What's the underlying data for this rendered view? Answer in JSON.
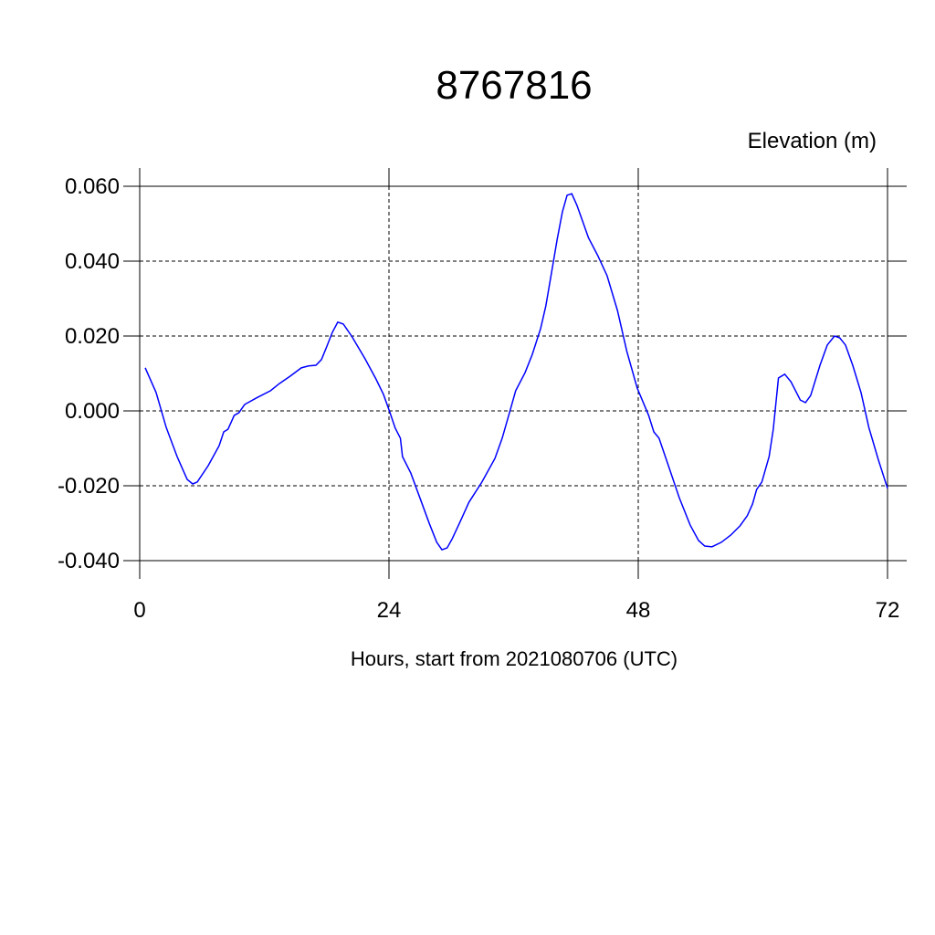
{
  "chart_data": {
    "type": "line",
    "title": "8767816",
    "subtitle": "Elevation (m)",
    "x_label": "Hours, start from 2021080706 (UTC)",
    "xlim": [
      0,
      72
    ],
    "xticks": [
      0,
      24,
      48,
      72
    ],
    "ylim": [
      -0.04,
      0.06
    ],
    "yticks": [
      {
        "value": -0.04,
        "label": "-0.040"
      },
      {
        "value": -0.02,
        "label": "-0.020"
      },
      {
        "value": 0,
        "label": "0.000"
      },
      {
        "value": 0.02,
        "label": "0.020"
      },
      {
        "value": 0.04,
        "label": "0.040"
      },
      {
        "value": 0.06,
        "label": "0.060"
      }
    ],
    "grid": true,
    "color": "#0000ff",
    "x": [
      0.53,
      1.58,
      2.55,
      3.6,
      4.57,
      5.1,
      5.54,
      6.6,
      7.65,
      8.09,
      8.5,
      9.1,
      9.55,
      10.1,
      11.2,
      12.6,
      13.45,
      14.5,
      15.56,
      16.26,
      16.97,
      17.5,
      18.0,
      18.55,
      19.07,
      19.6,
      20.4,
      21.7,
      22.75,
      23.47,
      24.1,
      24.6,
      25.1,
      25.3,
      26.1,
      27.0,
      27.9,
      28.6,
      29.1,
      29.6,
      30.1,
      30.9,
      31.7,
      32.95,
      34.2,
      34.9,
      35.6,
      36.2,
      37.1,
      37.8,
      38.6,
      39.1,
      39.6,
      40.2,
      40.7,
      41.15,
      41.6,
      42.1,
      43.2,
      44.1,
      45.0,
      46.0,
      46.9,
      47.9,
      49.0,
      49.5,
      50.0,
      50.9,
      51.95,
      53.0,
      53.8,
      54.4,
      55.1,
      56.0,
      56.9,
      57.8,
      58.5,
      59.0,
      59.4,
      59.9,
      60.6,
      61.0,
      61.5,
      62.1,
      62.7,
      63.6,
      64.1,
      64.6,
      65.5,
      66.2,
      66.9,
      67.4,
      67.95,
      68.65,
      69.45,
      70.2,
      71.1,
      72.0
    ],
    "values": [
      0.0115,
      0.0049,
      -0.0044,
      -0.0122,
      -0.0183,
      -0.0195,
      -0.019,
      -0.0146,
      -0.0093,
      -0.0056,
      -0.0049,
      -0.0012,
      -0.0005,
      0.0017,
      0.0034,
      0.0054,
      0.0073,
      0.0093,
      0.0115,
      0.012,
      0.0122,
      0.0137,
      0.0171,
      0.021,
      0.0237,
      0.0232,
      0.02,
      0.0139,
      0.0085,
      0.0044,
      -0.0005,
      -0.0046,
      -0.0073,
      -0.0122,
      -0.0166,
      -0.0234,
      -0.0302,
      -0.0351,
      -0.0371,
      -0.0366,
      -0.0341,
      -0.0293,
      -0.0244,
      -0.019,
      -0.0127,
      -0.0073,
      -0.0005,
      0.0054,
      0.0102,
      0.0151,
      0.022,
      0.028,
      0.0361,
      0.0459,
      0.0532,
      0.0576,
      0.058,
      0.0549,
      0.0463,
      0.0415,
      0.0361,
      0.0268,
      0.0159,
      0.0061,
      -0.0012,
      -0.0056,
      -0.0073,
      -0.0146,
      -0.0232,
      -0.0305,
      -0.0346,
      -0.0361,
      -0.0363,
      -0.0351,
      -0.0332,
      -0.0307,
      -0.028,
      -0.0249,
      -0.021,
      -0.019,
      -0.0122,
      -0.0049,
      0.0088,
      0.0098,
      0.0078,
      0.0029,
      0.0022,
      0.0041,
      0.0122,
      0.0176,
      0.02,
      0.0195,
      0.0176,
      0.0122,
      0.0049,
      -0.0044,
      -0.0129,
      -0.0207
    ]
  }
}
